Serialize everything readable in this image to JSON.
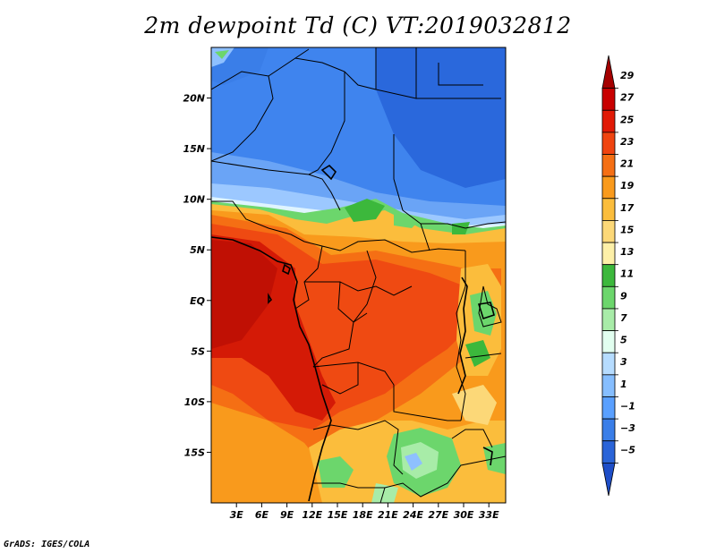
{
  "title": "2m dewpoint Td (C) VT:2019032812",
  "credit": "GrADS: IGES/COLA",
  "map": {
    "lon_range": [
      0,
      35
    ],
    "lat_range": [
      -20,
      25
    ],
    "lat_ticks": [
      {
        "value": 20,
        "label": "20N"
      },
      {
        "value": 15,
        "label": "15N"
      },
      {
        "value": 10,
        "label": "10N"
      },
      {
        "value": 5,
        "label": "5N"
      },
      {
        "value": 0,
        "label": "EQ"
      },
      {
        "value": -5,
        "label": "5S"
      },
      {
        "value": -10,
        "label": "10S"
      },
      {
        "value": -15,
        "label": "15S"
      }
    ],
    "lon_ticks": [
      {
        "value": 3,
        "label": "3E"
      },
      {
        "value": 6,
        "label": "6E"
      },
      {
        "value": 9,
        "label": "9E"
      },
      {
        "value": 12,
        "label": "12E"
      },
      {
        "value": 15,
        "label": "15E"
      },
      {
        "value": 18,
        "label": "18E"
      },
      {
        "value": 21,
        "label": "21E"
      },
      {
        "value": 24,
        "label": "24E"
      },
      {
        "value": 27,
        "label": "27E"
      },
      {
        "value": 30,
        "label": "30E"
      },
      {
        "value": 33,
        "label": "33E"
      }
    ]
  },
  "colorbar": {
    "levels": [
      29,
      27,
      25,
      23,
      21,
      19,
      17,
      15,
      13,
      11,
      9,
      7,
      5,
      3,
      1,
      -1,
      -3,
      -5
    ],
    "labels": [
      "29",
      "27",
      "25",
      "23",
      "21",
      "19",
      "17",
      "15",
      "13",
      "11",
      "9",
      "7",
      "5",
      "3",
      "1",
      "−1",
      "−3",
      "−5"
    ],
    "colors": [
      "#a50000",
      "#c80000",
      "#e11a06",
      "#f04410",
      "#f56f14",
      "#f99a1c",
      "#fbbd3c",
      "#fcd878",
      "#fdf0a8",
      "#3cb83c",
      "#6cd66c",
      "#a8eca8",
      "#e2fff0",
      "#b6dcff",
      "#86beff",
      "#5aa0ff",
      "#3a7ee8",
      "#2a64d8",
      "#1e4ec8"
    ]
  },
  "colors": {
    "dry_blue": "#2f72e4",
    "mid_blue": "#4a8cf0",
    "light_blue": "#8ec0ff",
    "green": "#3cb83c",
    "yellow": "#fcd878",
    "orange": "#f79a1c",
    "red_orange": "#ef4a12",
    "red": "#d41a06",
    "borders": "#000000"
  }
}
